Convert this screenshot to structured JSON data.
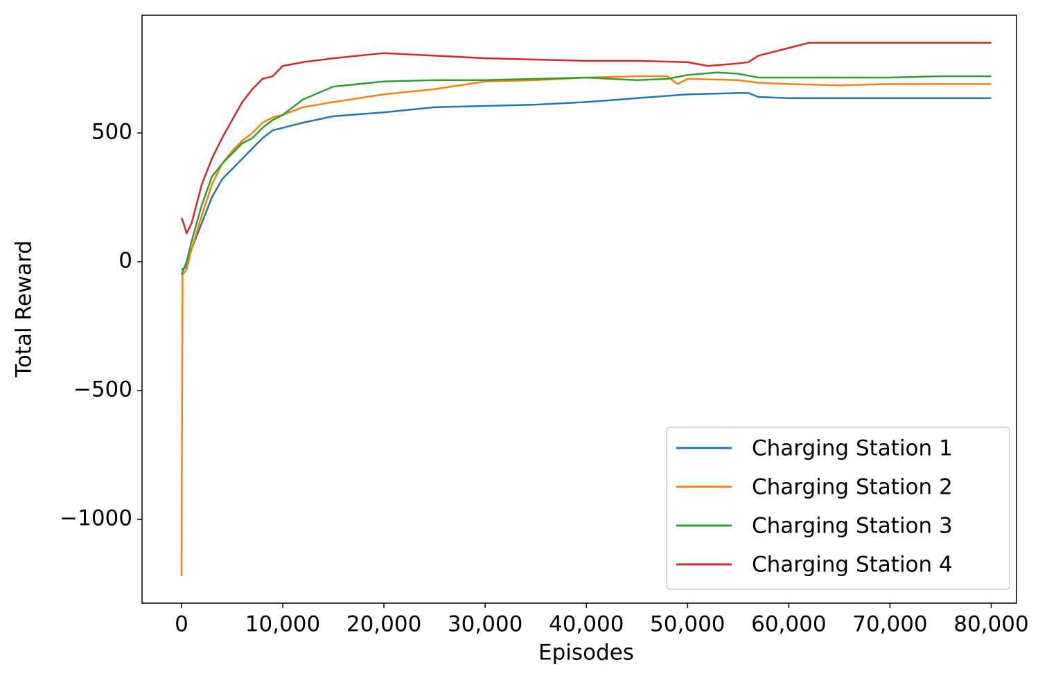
{
  "chart_data": {
    "type": "line",
    "xlabel": "Episodes",
    "ylabel": "Total Reward",
    "xlim": [
      -3900,
      82500
    ],
    "ylim": [
      -1325,
      957
    ],
    "xticks": [
      0,
      {
        "value": 10000,
        "label": "10,000"
      },
      {
        "value": 20000,
        "label": "20,000"
      },
      {
        "value": 30000,
        "label": "30,000"
      },
      {
        "value": 40000,
        "label": "40,000"
      },
      {
        "value": 50000,
        "label": "50,000"
      },
      {
        "value": 60000,
        "label": "60,000"
      },
      {
        "value": 70000,
        "label": "70,000"
      },
      {
        "value": 80000,
        "label": "80,000"
      }
    ],
    "yticks": [
      {
        "value": -1000,
        "label": "−1000"
      },
      {
        "value": -500,
        "label": "−500"
      },
      0,
      500
    ],
    "grid": false,
    "legend": "lower right",
    "series": [
      {
        "name": "Charging Station 1",
        "color": "#1f77b4",
        "x": [
          0,
          500,
          1000,
          2000,
          3000,
          4000,
          5000,
          6000,
          7000,
          8000,
          9000,
          10000,
          12000,
          15000,
          20000,
          25000,
          30000,
          35000,
          40000,
          45000,
          50000,
          55000,
          56000,
          57000,
          60000,
          65000,
          70000,
          75000,
          80000
        ],
        "values": [
          -30,
          -20,
          50,
          150,
          250,
          320,
          360,
          400,
          440,
          480,
          510,
          520,
          540,
          565,
          580,
          600,
          605,
          610,
          620,
          635,
          650,
          655,
          655,
          640,
          635,
          635,
          635,
          635,
          635
        ]
      },
      {
        "name": "Charging Station 2",
        "color": "#ff7f0e",
        "x": [
          0,
          100,
          500,
          1000,
          2000,
          3000,
          4000,
          5000,
          6000,
          7000,
          8000,
          9000,
          10000,
          12000,
          15000,
          20000,
          25000,
          30000,
          35000,
          40000,
          45000,
          48000,
          49000,
          50000,
          55000,
          56000,
          57000,
          60000,
          65000,
          70000,
          75000,
          80000
        ],
        "values": [
          -1220,
          -50,
          -30,
          50,
          180,
          300,
          380,
          430,
          470,
          500,
          540,
          560,
          570,
          600,
          620,
          650,
          670,
          700,
          705,
          715,
          720,
          720,
          690,
          710,
          705,
          700,
          695,
          690,
          685,
          690,
          690,
          690
        ]
      },
      {
        "name": "Charging Station 3",
        "color": "#2ca02c",
        "x": [
          0,
          500,
          1000,
          2000,
          3000,
          4000,
          5000,
          6000,
          7000,
          8000,
          9000,
          10000,
          11000,
          12000,
          15000,
          20000,
          25000,
          30000,
          35000,
          40000,
          45000,
          48000,
          50000,
          53000,
          55000,
          57000,
          60000,
          65000,
          70000,
          75000,
          80000
        ],
        "values": [
          -50,
          0,
          80,
          220,
          330,
          380,
          420,
          460,
          480,
          520,
          550,
          570,
          600,
          630,
          680,
          700,
          705,
          705,
          710,
          715,
          705,
          710,
          725,
          735,
          730,
          715,
          715,
          715,
          715,
          720,
          720
        ]
      },
      {
        "name": "Charging Station 4",
        "color": "#d62728",
        "x": [
          0,
          200,
          500,
          1000,
          2000,
          3000,
          4000,
          5000,
          6000,
          7000,
          8000,
          9000,
          10000,
          12000,
          15000,
          20000,
          25000,
          30000,
          35000,
          40000,
          45000,
          50000,
          52000,
          55000,
          56000,
          57000,
          60000,
          62000,
          65000,
          70000,
          75000,
          80000
        ],
        "values": [
          170,
          150,
          110,
          150,
          300,
          400,
          480,
          550,
          620,
          670,
          710,
          720,
          760,
          775,
          790,
          810,
          800,
          790,
          785,
          780,
          780,
          775,
          760,
          770,
          775,
          800,
          830,
          850,
          850,
          850,
          850,
          850
        ]
      }
    ]
  }
}
